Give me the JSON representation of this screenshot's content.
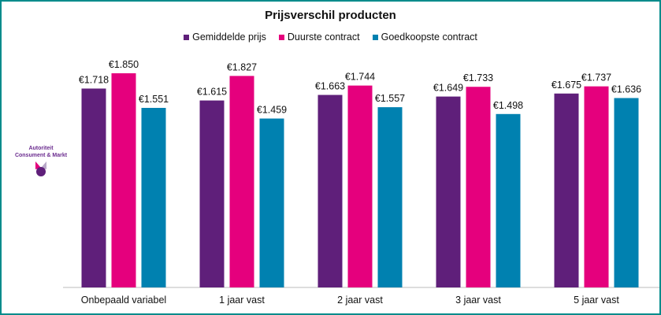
{
  "chart_data": {
    "type": "bar",
    "title": "Prijsverschil producten",
    "categories": [
      "Onbepaald variabel",
      "1 jaar vast",
      "2 jaar vast",
      "3 jaar vast",
      "5 jaar vast"
    ],
    "series": [
      {
        "name": "Gemiddelde prijs",
        "color": "#5f1f7a",
        "values": [
          1.718,
          1.615,
          1.663,
          1.649,
          1.675
        ],
        "labels": [
          "€1.718",
          "€1.615",
          "€1.663",
          "€1.649",
          "€1.675"
        ]
      },
      {
        "name": "Duurste contract",
        "color": "#e5007d",
        "values": [
          1.85,
          1.827,
          1.744,
          1.733,
          1.737
        ],
        "labels": [
          "€1.850",
          "€1.827",
          "€1.744",
          "€1.733",
          "€1.737"
        ]
      },
      {
        "name": "Goedkoopste contract",
        "color": "#0081b0",
        "values": [
          1.551,
          1.459,
          1.557,
          1.498,
          1.636
        ],
        "labels": [
          "€1.551",
          "€1.459",
          "€1.557",
          "€1.498",
          "€1.636"
        ]
      }
    ],
    "ylim": [
      0,
      2.5
    ],
    "grid": false,
    "legend": "top-center"
  },
  "logo": {
    "line1": "Autoriteit",
    "line2": "Consument & Markt"
  }
}
